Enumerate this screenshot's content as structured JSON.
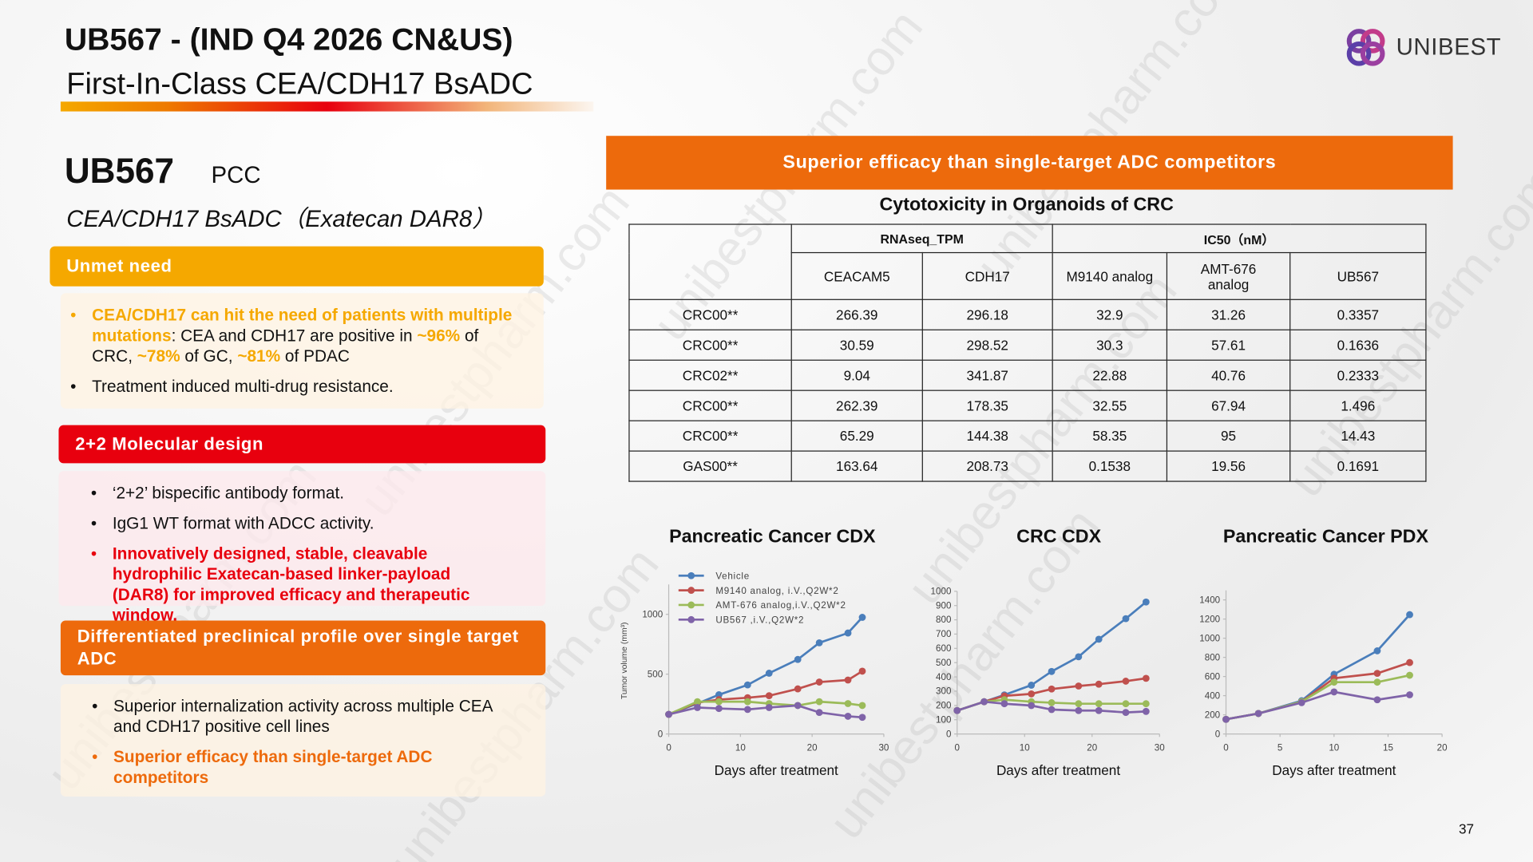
{
  "header": {
    "title": "UB567 -  (IND Q4 2026 CN&US)",
    "subtitle": "First-In-Class CEA/CDH17 BsADC",
    "logo": "UNIBEST",
    "page_number": "37"
  },
  "watermark": "unibestpharm.com",
  "product": {
    "name": "UB567",
    "tag": "PCC",
    "description": "CEA/CDH17  BsADC（Exatecan DAR8）"
  },
  "sections": [
    {
      "title": "Unmet need",
      "color": "#f5a800",
      "bullets": [
        {
          "runs": [
            {
              "text": "CEA/CDH17 can hit the need of patients with multiple mutations",
              "color": "#f5a800"
            },
            {
              "text": ": CEA and CDH17 are positive in "
            },
            {
              "text": "~96%",
              "color": "#f5a800"
            },
            {
              "text": " of CRC, "
            },
            {
              "text": "~78%",
              "color": "#f5a800"
            },
            {
              "text": " of GC, "
            },
            {
              "text": "~81%",
              "color": "#f5a800"
            },
            {
              "text": " of PDAC"
            }
          ]
        },
        {
          "runs": [
            {
              "text": "Treatment induced multi-drug resistance."
            }
          ]
        }
      ]
    },
    {
      "title": "2+2 Molecular design",
      "color": "#e8000e",
      "bullets": [
        {
          "runs": [
            {
              "text": "‘2+2’ bispecific antibody format."
            }
          ]
        },
        {
          "runs": [
            {
              "text": "IgG1 WT format with ADCC activity."
            }
          ]
        },
        {
          "runs": [
            {
              "text": "Innovatively designed, stable, cleavable hydrophilic Exatecan-based linker-payload (DAR8) for improved efficacy and therapeutic window.",
              "color": "#e8000e"
            }
          ]
        }
      ]
    },
    {
      "title": "Differentiated preclinical profile over single target ADC",
      "color": "#ed6a0c",
      "bullets": [
        {
          "runs": [
            {
              "text": "Superior internalization activity across multiple CEA and CDH17 positive cell lines"
            }
          ]
        },
        {
          "runs": [
            {
              "text": "Superior efficacy than single-target ADC competitors",
              "color": "#ed6a0c"
            }
          ]
        }
      ]
    }
  ],
  "banner": "Superior efficacy than single-target ADC competitors",
  "table": {
    "title": "Cytotoxicity in Organoids of CRC",
    "groups": [
      "RNAseq_TPM",
      "IC50（nM）"
    ],
    "columns": [
      "CEACAM5",
      "CDH17",
      "M9140 analog",
      "AMT-676 analog",
      "UB567"
    ],
    "rows": [
      {
        "label": "CRC00**",
        "values": [
          266.39,
          296.18,
          32.9,
          31.26,
          0.3357
        ]
      },
      {
        "label": "CRC00**",
        "values": [
          30.59,
          298.52,
          30.3,
          57.61,
          0.1636
        ]
      },
      {
        "label": "CRC02**",
        "values": [
          9.04,
          341.87,
          22.88,
          40.76,
          0.2333
        ]
      },
      {
        "label": "CRC00**",
        "values": [
          262.39,
          178.35,
          32.55,
          67.94,
          1.496
        ]
      },
      {
        "label": "CRC00**",
        "values": [
          65.29,
          144.38,
          58.35,
          95,
          14.43
        ]
      },
      {
        "label": "GAS00**",
        "values": [
          163.64,
          208.73,
          0.1538,
          19.56,
          0.1691
        ]
      }
    ]
  },
  "chart_data": [
    {
      "type": "line",
      "title": "Pancreatic Cancer CDX",
      "x_label": "Days after treatment",
      "y_label": "Tumor volume (mm³)",
      "x": [
        0,
        4,
        7,
        11,
        14,
        18,
        21,
        25,
        27
      ],
      "xlim": [
        0,
        30
      ],
      "xticks": [
        0,
        10,
        20,
        30
      ],
      "ylim": [
        0,
        1250
      ],
      "yticks": [
        0,
        500,
        1000
      ],
      "legend": "top-left",
      "series": [
        {
          "name": "Vehicle",
          "color": "#4a7ebb",
          "values": [
            164,
            254,
            328,
            410,
            508,
            623,
            762,
            844,
            975
          ]
        },
        {
          "name": "M9140 analog, i.V.,Q2W*2",
          "color": "#c0504d",
          "values": [
            164,
            262,
            287,
            303,
            320,
            377,
            434,
            451,
            525
          ]
        },
        {
          "name": "AMT-676 analog,i.V.,Q2W*2",
          "color": "#9bbb59",
          "values": [
            164,
            270,
            270,
            270,
            254,
            238,
            270,
            254,
            238
          ]
        },
        {
          "name": "UB567 ,i.V.,Q2W*2",
          "color": "#7f63a8",
          "values": [
            164,
            221,
            213,
            205,
            221,
            238,
            180,
            148,
            139
          ]
        }
      ]
    },
    {
      "type": "line",
      "title": "CRC CDX",
      "x_label": "Days after treatment",
      "x": [
        0,
        4,
        7,
        11,
        14,
        18,
        21,
        25,
        28
      ],
      "xlim": [
        0,
        30
      ],
      "xticks": [
        0,
        10,
        20,
        30
      ],
      "ylim": [
        0,
        1000
      ],
      "yticks": [
        0,
        100,
        200,
        300,
        400,
        500,
        600,
        700,
        800,
        900,
        1000
      ],
      "series": [
        {
          "color": "#4a7ebb",
          "values": [
            164,
            226,
            274,
            342,
            438,
            541,
            664,
            808,
            925
          ]
        },
        {
          "color": "#c0504d",
          "values": [
            164,
            226,
            267,
            281,
            315,
            336,
            349,
            370,
            390
          ]
        },
        {
          "color": "#9bbb59",
          "values": [
            164,
            226,
            240,
            226,
            219,
            212,
            212,
            212,
            212
          ]
        },
        {
          "color": "#7f63a8",
          "values": [
            164,
            226,
            212,
            199,
            171,
            164,
            164,
            151,
            158
          ]
        }
      ]
    },
    {
      "type": "line",
      "title": "Pancreatic Cancer PDX",
      "x_label": "Days after treatment",
      "x": [
        0,
        3,
        7,
        10,
        14,
        17
      ],
      "xlim": [
        0,
        20
      ],
      "xticks": [
        0,
        5,
        10,
        15,
        20
      ],
      "ylim": [
        0,
        1500
      ],
      "yticks": [
        0,
        200,
        400,
        600,
        800,
        1000,
        1200,
        1400
      ],
      "series": [
        {
          "color": "#4a7ebb",
          "values": [
            153,
            214,
            347,
            623,
            868,
            1246
          ]
        },
        {
          "color": "#c0504d",
          "values": [
            153,
            214,
            337,
            582,
            633,
            746
          ]
        },
        {
          "color": "#9bbb59",
          "values": [
            153,
            214,
            337,
            541,
            541,
            613
          ]
        },
        {
          "color": "#7f63a8",
          "values": [
            153,
            214,
            327,
            439,
            357,
            409
          ]
        }
      ]
    }
  ]
}
